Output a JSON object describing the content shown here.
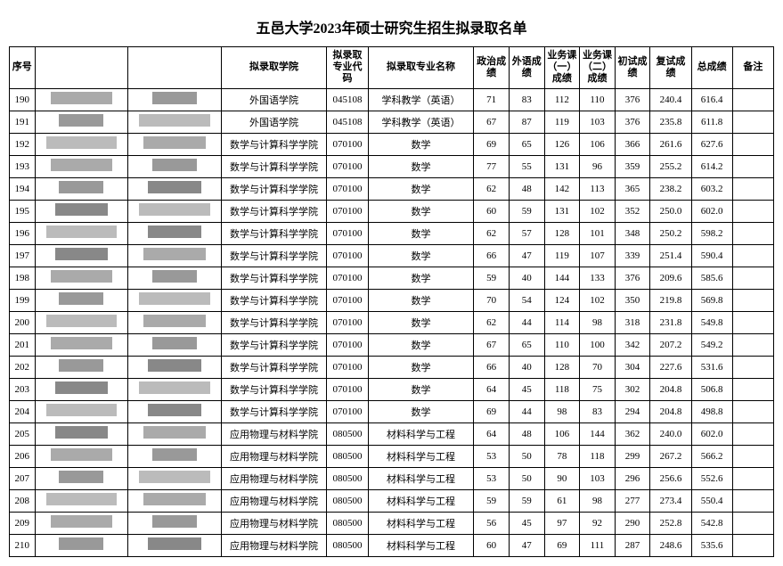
{
  "title": "五邑大学2023年硕士研究生招生拟录取名单",
  "headers": {
    "seq": "序号",
    "college": "拟录取学院",
    "code": "拟录取专业代码",
    "major": "拟录取专业名称",
    "politics": "政治成绩",
    "foreign": "外语成绩",
    "course1": "业务课（一）成绩",
    "course2": "业务课（二）成绩",
    "initial": "初试成绩",
    "retest": "复试成绩",
    "total": "总成绩",
    "remark": "备注"
  },
  "rows": [
    {
      "seq": "190",
      "college": "外国语学院",
      "code": "045108",
      "major": "学科教学（英语）",
      "politics": "71",
      "foreign": "83",
      "course1": "112",
      "course2": "110",
      "initial": "376",
      "retest": "240.4",
      "total": "616.4",
      "remark": ""
    },
    {
      "seq": "191",
      "college": "外国语学院",
      "code": "045108",
      "major": "学科教学（英语）",
      "politics": "67",
      "foreign": "87",
      "course1": "119",
      "course2": "103",
      "initial": "376",
      "retest": "235.8",
      "total": "611.8",
      "remark": ""
    },
    {
      "seq": "192",
      "college": "数学与计算科学学院",
      "code": "070100",
      "major": "数学",
      "politics": "69",
      "foreign": "65",
      "course1": "126",
      "course2": "106",
      "initial": "366",
      "retest": "261.6",
      "total": "627.6",
      "remark": ""
    },
    {
      "seq": "193",
      "college": "数学与计算科学学院",
      "code": "070100",
      "major": "数学",
      "politics": "77",
      "foreign": "55",
      "course1": "131",
      "course2": "96",
      "initial": "359",
      "retest": "255.2",
      "total": "614.2",
      "remark": ""
    },
    {
      "seq": "194",
      "college": "数学与计算科学学院",
      "code": "070100",
      "major": "数学",
      "politics": "62",
      "foreign": "48",
      "course1": "142",
      "course2": "113",
      "initial": "365",
      "retest": "238.2",
      "total": "603.2",
      "remark": ""
    },
    {
      "seq": "195",
      "college": "数学与计算科学学院",
      "code": "070100",
      "major": "数学",
      "politics": "60",
      "foreign": "59",
      "course1": "131",
      "course2": "102",
      "initial": "352",
      "retest": "250.0",
      "total": "602.0",
      "remark": ""
    },
    {
      "seq": "196",
      "college": "数学与计算科学学院",
      "code": "070100",
      "major": "数学",
      "politics": "62",
      "foreign": "57",
      "course1": "128",
      "course2": "101",
      "initial": "348",
      "retest": "250.2",
      "total": "598.2",
      "remark": ""
    },
    {
      "seq": "197",
      "college": "数学与计算科学学院",
      "code": "070100",
      "major": "数学",
      "politics": "66",
      "foreign": "47",
      "course1": "119",
      "course2": "107",
      "initial": "339",
      "retest": "251.4",
      "total": "590.4",
      "remark": ""
    },
    {
      "seq": "198",
      "college": "数学与计算科学学院",
      "code": "070100",
      "major": "数学",
      "politics": "59",
      "foreign": "40",
      "course1": "144",
      "course2": "133",
      "initial": "376",
      "retest": "209.6",
      "total": "585.6",
      "remark": ""
    },
    {
      "seq": "199",
      "college": "数学与计算科学学院",
      "code": "070100",
      "major": "数学",
      "politics": "70",
      "foreign": "54",
      "course1": "124",
      "course2": "102",
      "initial": "350",
      "retest": "219.8",
      "total": "569.8",
      "remark": ""
    },
    {
      "seq": "200",
      "college": "数学与计算科学学院",
      "code": "070100",
      "major": "数学",
      "politics": "62",
      "foreign": "44",
      "course1": "114",
      "course2": "98",
      "initial": "318",
      "retest": "231.8",
      "total": "549.8",
      "remark": ""
    },
    {
      "seq": "201",
      "college": "数学与计算科学学院",
      "code": "070100",
      "major": "数学",
      "politics": "67",
      "foreign": "65",
      "course1": "110",
      "course2": "100",
      "initial": "342",
      "retest": "207.2",
      "total": "549.2",
      "remark": ""
    },
    {
      "seq": "202",
      "college": "数学与计算科学学院",
      "code": "070100",
      "major": "数学",
      "politics": "66",
      "foreign": "40",
      "course1": "128",
      "course2": "70",
      "initial": "304",
      "retest": "227.6",
      "total": "531.6",
      "remark": ""
    },
    {
      "seq": "203",
      "college": "数学与计算科学学院",
      "code": "070100",
      "major": "数学",
      "politics": "64",
      "foreign": "45",
      "course1": "118",
      "course2": "75",
      "initial": "302",
      "retest": "204.8",
      "total": "506.8",
      "remark": ""
    },
    {
      "seq": "204",
      "college": "数学与计算科学学院",
      "code": "070100",
      "major": "数学",
      "politics": "69",
      "foreign": "44",
      "course1": "98",
      "course2": "83",
      "initial": "294",
      "retest": "204.8",
      "total": "498.8",
      "remark": ""
    },
    {
      "seq": "205",
      "college": "应用物理与材料学院",
      "code": "080500",
      "major": "材料科学与工程",
      "politics": "64",
      "foreign": "48",
      "course1": "106",
      "course2": "144",
      "initial": "362",
      "retest": "240.0",
      "total": "602.0",
      "remark": ""
    },
    {
      "seq": "206",
      "college": "应用物理与材料学院",
      "code": "080500",
      "major": "材料科学与工程",
      "politics": "53",
      "foreign": "50",
      "course1": "78",
      "course2": "118",
      "initial": "299",
      "retest": "267.2",
      "total": "566.2",
      "remark": ""
    },
    {
      "seq": "207",
      "college": "应用物理与材料学院",
      "code": "080500",
      "major": "材料科学与工程",
      "politics": "53",
      "foreign": "50",
      "course1": "90",
      "course2": "103",
      "initial": "296",
      "retest": "256.6",
      "total": "552.6",
      "remark": ""
    },
    {
      "seq": "208",
      "college": "应用物理与材料学院",
      "code": "080500",
      "major": "材料科学与工程",
      "politics": "59",
      "foreign": "59",
      "course1": "61",
      "course2": "98",
      "initial": "277",
      "retest": "273.4",
      "total": "550.4",
      "remark": ""
    },
    {
      "seq": "209",
      "college": "应用物理与材料学院",
      "code": "080500",
      "major": "材料科学与工程",
      "politics": "56",
      "foreign": "45",
      "course1": "97",
      "course2": "92",
      "initial": "290",
      "retest": "252.8",
      "total": "542.8",
      "remark": ""
    },
    {
      "seq": "210",
      "college": "应用物理与材料学院",
      "code": "080500",
      "major": "材料科学与工程",
      "politics": "60",
      "foreign": "47",
      "course1": "69",
      "course2": "111",
      "initial": "287",
      "retest": "248.6",
      "total": "535.6",
      "remark": ""
    }
  ]
}
